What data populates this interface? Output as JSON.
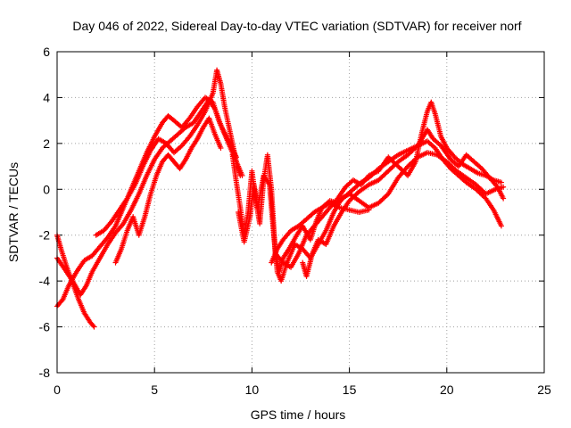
{
  "chart_data": {
    "type": "scatter",
    "title": "Day 046 of 2022, Sidereal Day-to-day VTEC variation (SDTVAR) for receiver norf",
    "xlabel": "GPS time / hours",
    "ylabel": "SDTVAR / TECUs",
    "xlim": [
      0,
      25
    ],
    "ylim": [
      -8,
      6
    ],
    "xticks": [
      0,
      5,
      10,
      15,
      20,
      25
    ],
    "yticks": [
      -8,
      -6,
      -4,
      -2,
      0,
      2,
      4,
      6
    ],
    "grid": true,
    "marker": "+",
    "color": "#ff0000",
    "series": [
      {
        "name": "track-1",
        "points": [
          [
            0,
            -5.1
          ],
          [
            0.3,
            -4.8
          ],
          [
            0.6,
            -4.2
          ],
          [
            1.0,
            -3.6
          ],
          [
            1.4,
            -3.1
          ],
          [
            1.8,
            -2.9
          ],
          [
            2.2,
            -2.5
          ],
          [
            2.6,
            -2.1
          ],
          [
            3.0,
            -1.6
          ],
          [
            3.4,
            -0.8
          ],
          [
            3.8,
            0.0
          ],
          [
            4.2,
            0.8
          ],
          [
            4.6,
            1.6
          ],
          [
            5.0,
            2.3
          ],
          [
            5.4,
            2.9
          ],
          [
            5.7,
            3.2
          ],
          [
            6.0,
            3.0
          ],
          [
            6.4,
            2.7
          ],
          [
            6.8,
            3.1
          ],
          [
            7.2,
            3.6
          ],
          [
            7.6,
            4.0
          ],
          [
            8.0,
            3.8
          ],
          [
            8.3,
            3.0
          ],
          [
            8.6,
            2.4
          ],
          [
            8.9,
            1.8
          ],
          [
            9.2,
            1.2
          ],
          [
            9.5,
            0.6
          ]
        ]
      },
      {
        "name": "track-2",
        "points": [
          [
            0,
            -2.0
          ],
          [
            0.2,
            -2.6
          ],
          [
            0.5,
            -3.4
          ],
          [
            0.8,
            -4.1
          ],
          [
            1.1,
            -4.8
          ],
          [
            1.4,
            -5.4
          ],
          [
            1.7,
            -5.8
          ],
          [
            1.9,
            -6.0
          ]
        ]
      },
      {
        "name": "track-3",
        "points": [
          [
            0,
            -3.0
          ],
          [
            0.4,
            -3.5
          ],
          [
            0.8,
            -4.0
          ],
          [
            1.2,
            -4.6
          ],
          [
            1.5,
            -4.2
          ],
          [
            1.8,
            -3.6
          ],
          [
            2.2,
            -3.0
          ],
          [
            2.6,
            -2.4
          ],
          [
            3.0,
            -1.9
          ],
          [
            3.4,
            -1.5
          ],
          [
            3.8,
            -0.9
          ],
          [
            4.2,
            -0.2
          ],
          [
            4.6,
            0.6
          ],
          [
            5.0,
            1.3
          ],
          [
            5.4,
            1.8
          ],
          [
            5.8,
            2.1
          ],
          [
            6.2,
            2.4
          ],
          [
            6.6,
            2.7
          ],
          [
            7.0,
            2.9
          ],
          [
            7.4,
            3.4
          ],
          [
            7.8,
            3.9
          ],
          [
            8.1,
            3.5
          ],
          [
            8.4,
            2.8
          ],
          [
            8.8,
            2.1
          ],
          [
            9.2,
            1.4
          ]
        ]
      },
      {
        "name": "track-4",
        "points": [
          [
            2.0,
            -2.0
          ],
          [
            2.4,
            -1.8
          ],
          [
            2.8,
            -1.4
          ],
          [
            3.2,
            -0.9
          ],
          [
            3.6,
            -0.4
          ],
          [
            4.0,
            0.2
          ],
          [
            4.4,
            1.0
          ],
          [
            4.8,
            1.7
          ],
          [
            5.2,
            2.2
          ],
          [
            5.6,
            2.0
          ],
          [
            6.0,
            1.6
          ],
          [
            6.4,
            1.9
          ],
          [
            6.8,
            2.3
          ],
          [
            7.2,
            2.8
          ],
          [
            7.6,
            3.4
          ],
          [
            8.0,
            4.2
          ],
          [
            8.2,
            5.2
          ],
          [
            8.4,
            4.6
          ],
          [
            8.6,
            3.6
          ],
          [
            8.8,
            2.8
          ],
          [
            9.0,
            2.0
          ],
          [
            9.2,
            1.2
          ],
          [
            9.4,
            0.6
          ]
        ]
      },
      {
        "name": "track-5",
        "points": [
          [
            3.0,
            -3.2
          ],
          [
            3.3,
            -2.6
          ],
          [
            3.6,
            -1.8
          ],
          [
            3.9,
            -1.2
          ],
          [
            4.2,
            -2.0
          ],
          [
            4.5,
            -1.2
          ],
          [
            4.8,
            -0.2
          ],
          [
            5.1,
            0.6
          ],
          [
            5.4,
            1.2
          ],
          [
            5.7,
            1.5
          ],
          [
            6.0,
            1.2
          ],
          [
            6.3,
            0.9
          ],
          [
            6.6,
            1.3
          ],
          [
            6.9,
            1.8
          ],
          [
            7.2,
            2.2
          ],
          [
            7.5,
            2.7
          ],
          [
            7.8,
            3.1
          ],
          [
            8.1,
            2.4
          ],
          [
            8.4,
            1.8
          ]
        ]
      },
      {
        "name": "track-6",
        "points": [
          [
            9.0,
            1.5
          ],
          [
            9.2,
            0.3
          ],
          [
            9.4,
            -0.8
          ],
          [
            9.6,
            -2.0
          ],
          [
            9.8,
            -1.0
          ],
          [
            10.0,
            0.8
          ],
          [
            10.2,
            -0.5
          ],
          [
            10.4,
            -1.5
          ],
          [
            10.6,
            0.4
          ],
          [
            10.8,
            1.5
          ],
          [
            11.0,
            0.0
          ],
          [
            11.2,
            -2.8
          ],
          [
            11.4,
            -3.6
          ],
          [
            11.6,
            -3.0
          ],
          [
            11.9,
            -2.6
          ],
          [
            12.3,
            -2.0
          ],
          [
            12.6,
            -1.6
          ],
          [
            13.0,
            -2.2
          ],
          [
            13.3,
            -1.4
          ],
          [
            13.6,
            -0.8
          ],
          [
            14.0,
            -0.5
          ],
          [
            14.4,
            -0.6
          ],
          [
            14.8,
            -0.3
          ],
          [
            15.2,
            0.0
          ],
          [
            15.6,
            0.3
          ],
          [
            16.0,
            0.5
          ],
          [
            16.5,
            0.9
          ],
          [
            17.0,
            1.2
          ],
          [
            17.5,
            1.5
          ],
          [
            18.0,
            1.7
          ],
          [
            18.5,
            1.9
          ],
          [
            19.0,
            2.1
          ],
          [
            19.4,
            1.8
          ],
          [
            19.8,
            1.3
          ],
          [
            20.2,
            0.9
          ],
          [
            20.6,
            0.6
          ],
          [
            21.0,
            0.3
          ],
          [
            21.5,
            0.0
          ],
          [
            22.0,
            -0.4
          ],
          [
            22.4,
            -0.9
          ],
          [
            22.8,
            -1.6
          ]
        ]
      },
      {
        "name": "track-7",
        "points": [
          [
            9.3,
            -1.0
          ],
          [
            9.6,
            -2.3
          ],
          [
            9.9,
            -1.2
          ],
          [
            10.1,
            0.2
          ],
          [
            10.3,
            -0.8
          ],
          [
            10.6,
            0.6
          ],
          [
            10.9,
            0.2
          ],
          [
            11.1,
            -1.8
          ],
          [
            11.3,
            -3.6
          ],
          [
            11.5,
            -4.0
          ],
          [
            11.8,
            -3.2
          ],
          [
            12.2,
            -2.4
          ],
          [
            12.6,
            -2.6
          ],
          [
            13.0,
            -3.0
          ],
          [
            13.4,
            -2.4
          ],
          [
            13.8,
            -1.8
          ],
          [
            14.2,
            -1.0
          ],
          [
            14.6,
            -0.4
          ],
          [
            15.0,
            -0.2
          ],
          [
            15.5,
            -0.5
          ],
          [
            16.0,
            -0.8
          ],
          [
            16.5,
            -0.6
          ],
          [
            17.0,
            -0.2
          ],
          [
            17.5,
            0.5
          ],
          [
            18.0,
            1.0
          ],
          [
            18.5,
            1.4
          ],
          [
            19.0,
            1.6
          ],
          [
            19.5,
            1.5
          ],
          [
            20.0,
            1.2
          ],
          [
            20.5,
            0.8
          ],
          [
            21.0,
            0.5
          ],
          [
            21.5,
            0.2
          ],
          [
            22.0,
            -0.2
          ],
          [
            22.5,
            0.0
          ],
          [
            22.9,
            0.1
          ]
        ]
      },
      {
        "name": "track-8",
        "points": [
          [
            11.2,
            -2.8
          ],
          [
            11.6,
            -3.2
          ],
          [
            12.0,
            -3.4
          ],
          [
            12.4,
            -2.8
          ],
          [
            12.8,
            -2.0
          ],
          [
            13.2,
            -1.6
          ],
          [
            13.6,
            -1.2
          ],
          [
            14.0,
            -0.8
          ],
          [
            14.4,
            -0.4
          ],
          [
            14.8,
            0.1
          ],
          [
            15.2,
            0.4
          ],
          [
            15.6,
            0.2
          ],
          [
            16.0,
            0.6
          ],
          [
            16.5,
            0.8
          ],
          [
            17.0,
            1.4
          ],
          [
            17.5,
            1.0
          ],
          [
            18.0,
            0.6
          ],
          [
            18.4,
            1.2
          ],
          [
            18.7,
            2.4
          ],
          [
            19.0,
            3.4
          ],
          [
            19.2,
            3.8
          ],
          [
            19.4,
            3.3
          ],
          [
            19.7,
            2.3
          ],
          [
            20.0,
            1.8
          ],
          [
            20.4,
            1.4
          ],
          [
            20.8,
            1.1
          ],
          [
            21.2,
            0.9
          ],
          [
            21.6,
            0.7
          ],
          [
            22.0,
            0.6
          ],
          [
            22.4,
            0.4
          ],
          [
            22.8,
            0.3
          ]
        ]
      },
      {
        "name": "track-9",
        "points": [
          [
            12.6,
            -3.2
          ],
          [
            12.8,
            -3.8
          ],
          [
            13.1,
            -2.8
          ],
          [
            13.4,
            -2.2
          ],
          [
            13.8,
            -2.4
          ],
          [
            14.2,
            -1.6
          ],
          [
            14.6,
            -1.0
          ],
          [
            15.0,
            -0.5
          ],
          [
            15.5,
            -0.1
          ],
          [
            16.0,
            0.2
          ],
          [
            16.5,
            0.4
          ],
          [
            17.0,
            0.8
          ],
          [
            17.5,
            1.2
          ],
          [
            18.0,
            1.5
          ],
          [
            18.5,
            1.9
          ],
          [
            19.0,
            2.6
          ],
          [
            19.3,
            2.2
          ],
          [
            19.7,
            1.9
          ],
          [
            20.2,
            1.3
          ],
          [
            20.6,
            1.0
          ],
          [
            21.0,
            1.5
          ],
          [
            21.4,
            1.2
          ],
          [
            21.8,
            0.9
          ],
          [
            22.2,
            0.5
          ],
          [
            22.6,
            0.1
          ],
          [
            22.9,
            -0.4
          ]
        ]
      },
      {
        "name": "track-10",
        "points": [
          [
            11.0,
            -3.2
          ],
          [
            11.3,
            -2.6
          ],
          [
            11.6,
            -2.2
          ],
          [
            12.0,
            -1.8
          ],
          [
            12.4,
            -1.6
          ],
          [
            12.8,
            -1.3
          ],
          [
            13.2,
            -1.0
          ],
          [
            13.6,
            -0.8
          ],
          [
            14.0,
            -0.6
          ],
          [
            14.5,
            -0.8
          ],
          [
            15.0,
            -0.9
          ],
          [
            15.5,
            -1.0
          ],
          [
            16.0,
            -0.9
          ]
        ]
      }
    ]
  }
}
